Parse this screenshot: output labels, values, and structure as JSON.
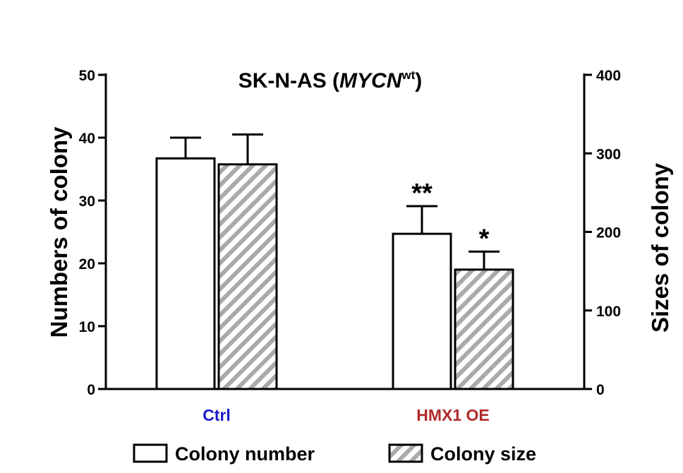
{
  "chart_data": {
    "type": "bar",
    "title": {
      "main": "SK-N-AS (",
      "gene": "MYCN",
      "superscript": "wt",
      "close": ")"
    },
    "categories": [
      "Ctrl",
      "HMX1 OE"
    ],
    "category_colors": [
      "#1a1acc",
      "#b02a2a"
    ],
    "y_left": {
      "label": "Numbers of colony",
      "ylim": [
        0,
        50
      ],
      "ticks": [
        "0",
        "10",
        "20",
        "30",
        "40",
        "50"
      ]
    },
    "y_right": {
      "label": "Sizes of colony",
      "ylim": [
        0,
        400
      ],
      "ticks": [
        "0",
        "100",
        "200",
        "300",
        "400"
      ]
    },
    "series": [
      {
        "name": "Colony number",
        "axis": "left",
        "fill": "open",
        "values": [
          36.7,
          24.7
        ],
        "errors": [
          3.3,
          4.4
        ],
        "significance": [
          "",
          "**"
        ]
      },
      {
        "name": "Colony size",
        "axis": "right",
        "fill": "hatched",
        "values": [
          286,
          152
        ],
        "errors": [
          38,
          23
        ],
        "significance": [
          "",
          "*"
        ]
      }
    ],
    "legend_position": "bottom",
    "hatch_color": "#aaaaaa"
  }
}
